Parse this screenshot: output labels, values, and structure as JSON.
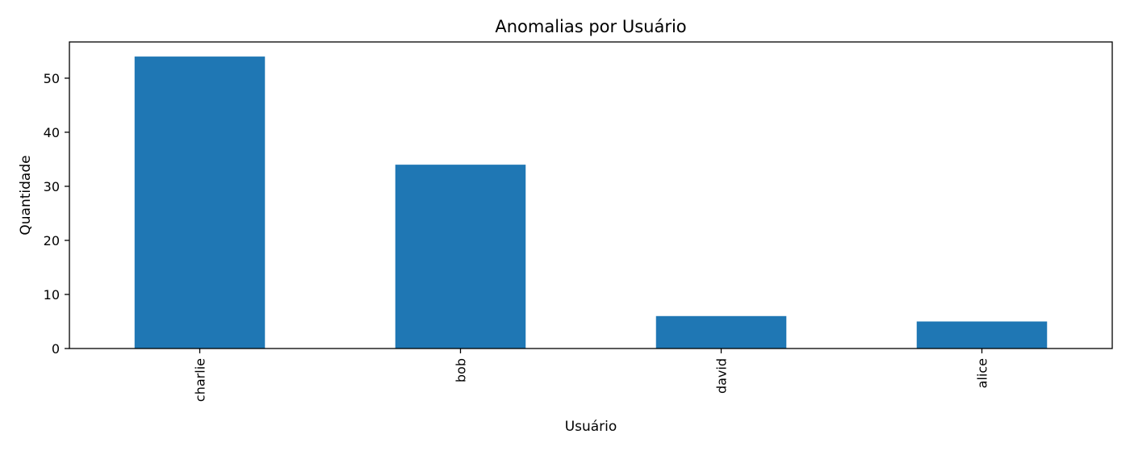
{
  "chart_data": {
    "type": "bar",
    "title": "Anomalias por Usuário",
    "xlabel": "Usuário",
    "ylabel": "Quantidade",
    "categories": [
      "charlie",
      "bob",
      "david",
      "alice"
    ],
    "values": [
      54,
      34,
      6,
      5
    ],
    "ylim": [
      0,
      56.7
    ],
    "yticks": [
      0,
      10,
      20,
      30,
      40,
      50
    ],
    "bar_color": "#1f77b4",
    "grid": false,
    "legend": "none",
    "x_tick_rotation": "vertical"
  }
}
